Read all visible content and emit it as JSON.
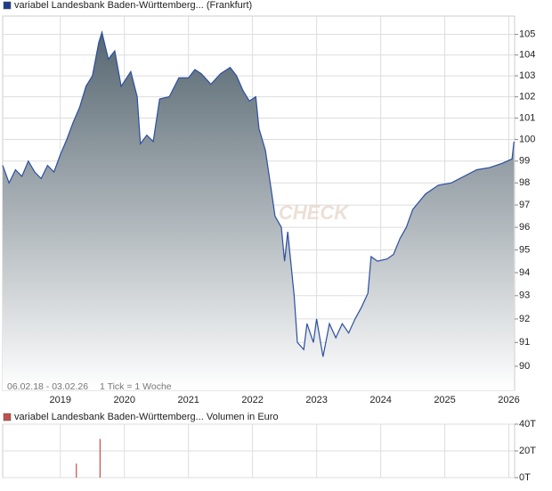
{
  "chart_data": [
    {
      "type": "area",
      "title": "variabel Landesbank Baden-Württemberg... (Frankfurt)",
      "date_range": "06.02.18 - 03.02.26",
      "tick_note": "1 Tick = 1 Woche",
      "watermark": "CHECK",
      "color": "#2b4fa0",
      "legend_color": "#1f3c8c",
      "log_scale": true,
      "grid": true,
      "x": [
        2018.1,
        2018.2,
        2018.3,
        2018.4,
        2018.5,
        2018.6,
        2018.7,
        2018.8,
        2018.9,
        2019.0,
        2019.1,
        2019.2,
        2019.3,
        2019.4,
        2019.5,
        2019.6,
        2019.65,
        2019.75,
        2019.85,
        2019.95,
        2020.1,
        2020.2,
        2020.25,
        2020.35,
        2020.45,
        2020.55,
        2020.7,
        2020.85,
        2021.0,
        2021.1,
        2021.2,
        2021.35,
        2021.5,
        2021.65,
        2021.75,
        2021.85,
        2021.95,
        2022.05,
        2022.1,
        2022.2,
        2022.3,
        2022.35,
        2022.45,
        2022.5,
        2022.55,
        2022.65,
        2022.7,
        2022.8,
        2022.85,
        2022.95,
        2023.0,
        2023.1,
        2023.2,
        2023.3,
        2023.4,
        2023.5,
        2023.6,
        2023.7,
        2023.8,
        2023.85,
        2023.95,
        2024.1,
        2024.2,
        2024.3,
        2024.4,
        2024.5,
        2024.7,
        2024.9,
        2025.1,
        2025.3,
        2025.5,
        2025.7,
        2025.9,
        2026.05,
        2026.08
      ],
      "values": [
        98.8,
        98.0,
        98.6,
        98.3,
        99.0,
        98.5,
        98.2,
        98.8,
        98.5,
        99.3,
        100.0,
        100.8,
        101.5,
        102.5,
        103.0,
        104.6,
        105.1,
        103.8,
        104.2,
        102.5,
        103.2,
        102.0,
        99.8,
        100.2,
        99.9,
        101.9,
        102.0,
        102.9,
        102.9,
        103.3,
        103.1,
        102.6,
        103.1,
        103.4,
        103.0,
        102.3,
        101.8,
        102.0,
        100.5,
        99.5,
        97.5,
        96.5,
        96.0,
        94.5,
        95.8,
        93.0,
        91.0,
        90.7,
        91.8,
        91.0,
        92.0,
        90.4,
        91.8,
        91.2,
        91.8,
        91.4,
        92.0,
        92.5,
        93.1,
        94.7,
        94.5,
        94.6,
        94.8,
        95.5,
        96.0,
        96.8,
        97.5,
        97.9,
        98.0,
        98.3,
        98.6,
        98.7,
        98.9,
        99.1,
        99.9
      ],
      "xlim": [
        2018.1,
        2026.09
      ],
      "ylim": [
        89.0,
        105.9
      ],
      "xticks": [
        2019,
        2020,
        2021,
        2022,
        2023,
        2024,
        2025,
        2026
      ],
      "yticks": [
        90,
        91,
        92,
        93,
        94,
        95,
        96,
        97,
        98,
        99,
        100,
        101,
        102,
        103,
        104,
        105
      ]
    },
    {
      "type": "bar",
      "title": "variabel Landesbank Baden-Württemberg... Volumen in Euro",
      "color": "#c0504d",
      "grid": true,
      "x": [
        2019.25,
        2019.62
      ],
      "values": [
        10.5,
        29
      ],
      "xlim": [
        2018.1,
        2026.09
      ],
      "ylim": [
        0,
        40
      ],
      "yticks": [
        {
          "value": 0,
          "label": "0T"
        },
        {
          "value": 20,
          "label": "20T"
        },
        {
          "value": 40,
          "label": "40T"
        }
      ]
    }
  ]
}
